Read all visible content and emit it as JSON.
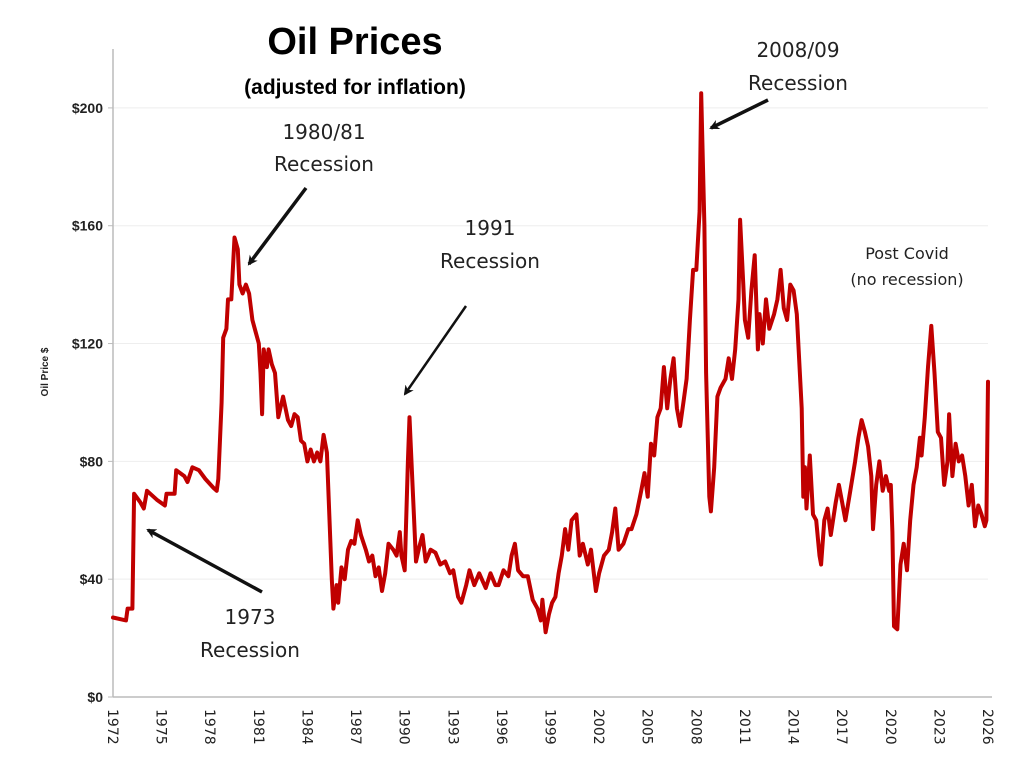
{
  "chart_data": {
    "type": "line",
    "title": "Oil Prices",
    "subtitle": "(adjusted for inflation)",
    "xlabel": "",
    "ylabel": "Oil Price $",
    "xlim": [
      1972,
      2026
    ],
    "ylim": [
      0,
      220
    ],
    "grid": true,
    "line_color": "#c00000",
    "x_ticks": [
      "1972",
      "1975",
      "1978",
      "1981",
      "1984",
      "1987",
      "1990",
      "1993",
      "1996",
      "1999",
      "2002",
      "2005",
      "2008",
      "2011",
      "2014",
      "2017",
      "2020",
      "2023",
      "2026"
    ],
    "y_ticks": [
      {
        "value": 0,
        "label": "$0"
      },
      {
        "value": 40,
        "label": "$40"
      },
      {
        "value": 80,
        "label": "$80"
      },
      {
        "value": 120,
        "label": "$120"
      },
      {
        "value": 160,
        "label": "$160"
      },
      {
        "value": 200,
        "label": "$200"
      }
    ],
    "annotations": [
      {
        "line1": "1973",
        "line2": "Recession",
        "x": 1973.4,
        "y": 56
      },
      {
        "line1": "1980/81",
        "line2": "Recession",
        "x": 1979.9,
        "y": 146
      },
      {
        "line1": "1991",
        "line2": "Recession",
        "x": 1990.0,
        "y": 102
      },
      {
        "line1": "2008/09",
        "line2": "Recession",
        "x": 2008.5,
        "y": 192
      },
      {
        "line1": "Post Covid",
        "line2": "(no recession)",
        "x": null,
        "y": null
      }
    ],
    "series": [
      {
        "x": [
          1972.0,
          1972.8,
          1972.9,
          1973.2,
          1973.3,
          1973.7,
          1973.9,
          1974.1,
          1974.7,
          1975.2,
          1975.3,
          1975.8,
          1975.9,
          1976.4,
          1976.6,
          1976.9,
          1977.3,
          1977.7,
          1978.2,
          1978.4,
          1978.5,
          1978.7,
          1978.8,
          1979.0,
          1979.1,
          1979.3,
          1979.5,
          1979.7,
          1979.8,
          1980.0,
          1980.2,
          1980.4,
          1980.6,
          1980.8,
          1981.0,
          1981.1,
          1981.2,
          1981.3,
          1981.5,
          1981.6,
          1981.8,
          1982.0,
          1982.2,
          1982.5,
          1982.8,
          1983.0,
          1983.2,
          1983.4,
          1983.6,
          1983.8,
          1984.0,
          1984.2,
          1984.4,
          1984.6,
          1984.8,
          1985.0,
          1985.2,
          1985.5,
          1985.6,
          1985.8,
          1985.9,
          1986.1,
          1986.3,
          1986.5,
          1986.7,
          1986.9,
          1987.1,
          1987.3,
          1987.6,
          1987.8,
          1988.0,
          1988.2,
          1988.4,
          1988.6,
          1988.8,
          1989.0,
          1989.3,
          1989.5,
          1989.7,
          1989.8,
          1990.0,
          1990.2,
          1990.3,
          1990.5,
          1990.7,
          1990.9,
          1991.1,
          1991.3,
          1991.6,
          1991.9,
          1992.2,
          1992.5,
          1992.8,
          1993.0,
          1993.3,
          1993.5,
          1993.8,
          1994.0,
          1994.3,
          1994.6,
          1995.0,
          1995.3,
          1995.6,
          1995.8,
          1996.1,
          1996.4,
          1996.6,
          1996.8,
          1997.0,
          1997.3,
          1997.6,
          1997.9,
          1998.2,
          1998.4,
          1998.5,
          1998.7,
          1998.9,
          1999.1,
          1999.3,
          1999.5,
          1999.7,
          1999.9,
          2000.1,
          2000.3,
          2000.6,
          2000.8,
          2001.0,
          2001.3,
          2001.5,
          2001.8,
          2002.0,
          2002.3,
          2002.6,
          2002.8,
          2003.0,
          2003.2,
          2003.5,
          2003.8,
          2004.0,
          2004.3,
          2004.6,
          2004.8,
          2005.0,
          2005.2,
          2005.4,
          2005.6,
          2005.8,
          2006.0,
          2006.2,
          2006.4,
          2006.6,
          2006.8,
          2007.0,
          2007.2,
          2007.4,
          2007.6,
          2007.8,
          2008.0,
          2008.2,
          2008.3,
          2008.5,
          2008.6,
          2008.8,
          2008.9,
          2009.1,
          2009.3,
          2009.5,
          2009.8,
          2010.0,
          2010.2,
          2010.4,
          2010.6,
          2010.7,
          2010.9,
          2011.0,
          2011.2,
          2011.4,
          2011.6,
          2011.8,
          2011.9,
          2012.1,
          2012.3,
          2012.5,
          2012.8,
          2013.0,
          2013.2,
          2013.4,
          2013.6,
          2013.8,
          2014.0,
          2014.2,
          2014.5,
          2014.6,
          2014.7,
          2014.8,
          2015.0,
          2015.2,
          2015.4,
          2015.6,
          2015.7,
          2015.9,
          2016.1,
          2016.3,
          2016.6,
          2016.8,
          2017.0,
          2017.2,
          2017.5,
          2017.8,
          2018.0,
          2018.2,
          2018.4,
          2018.6,
          2018.8,
          2018.9,
          2019.1,
          2019.3,
          2019.5,
          2019.7,
          2019.9,
          2020.0,
          2020.1,
          2020.2,
          2020.4,
          2020.6,
          2020.8,
          2021.0,
          2021.2,
          2021.4,
          2021.6,
          2021.8,
          2021.9,
          2022.1,
          2022.3,
          2022.5,
          2022.7,
          2022.9,
          2023.1,
          2023.3,
          2023.5,
          2023.6,
          2023.8,
          2024.0,
          2024.2,
          2024.4,
          2024.6,
          2024.8,
          2025.0,
          2025.2,
          2025.4,
          2025.6,
          2025.8,
          2025.9,
          2026.0
        ],
        "y": [
          27,
          26,
          30,
          30,
          69,
          66,
          64,
          70,
          67,
          65,
          69,
          69,
          77,
          75,
          73,
          78,
          77,
          74,
          71,
          70,
          74,
          100,
          122,
          125,
          135,
          135,
          156,
          152,
          140,
          137,
          140,
          137,
          128,
          124,
          120,
          110,
          96,
          118,
          112,
          118,
          113,
          110,
          95,
          102,
          94,
          92,
          96,
          95,
          87,
          86,
          80,
          84,
          80,
          83,
          80,
          89,
          83,
          40,
          30,
          38,
          32,
          44,
          40,
          50,
          53,
          52,
          60,
          55,
          50,
          46,
          48,
          41,
          44,
          36,
          42,
          52,
          50,
          48,
          56,
          48,
          43,
          80,
          95,
          70,
          46,
          51,
          55,
          46,
          50,
          49,
          45,
          46,
          42,
          43,
          34,
          32,
          38,
          43,
          38,
          42,
          37,
          42,
          38,
          38,
          43,
          41,
          48,
          52,
          43,
          41,
          41,
          33,
          30,
          26,
          33,
          22,
          28,
          32,
          34,
          42,
          48,
          57,
          50,
          60,
          62,
          48,
          52,
          45,
          50,
          36,
          42,
          48,
          50,
          56,
          64,
          50,
          52,
          57,
          57,
          62,
          70,
          76,
          68,
          86,
          82,
          95,
          98,
          112,
          98,
          108,
          115,
          98,
          92,
          100,
          108,
          128,
          145,
          145,
          165,
          205,
          160,
          110,
          68,
          63,
          78,
          102,
          105,
          108,
          115,
          108,
          118,
          135,
          162,
          140,
          128,
          122,
          138,
          150,
          118,
          130,
          120,
          135,
          125,
          130,
          135,
          145,
          132,
          128,
          140,
          138,
          130,
          98,
          68,
          78,
          64,
          82,
          62,
          60,
          48,
          45,
          60,
          64,
          55,
          66,
          72,
          66,
          60,
          70,
          80,
          88,
          94,
          90,
          85,
          75,
          57,
          72,
          80,
          70,
          75,
          70,
          72,
          56,
          24,
          23,
          45,
          52,
          43,
          60,
          72,
          78,
          88,
          82,
          95,
          112,
          126,
          110,
          90,
          88,
          72,
          80,
          96,
          75,
          86,
          80,
          82,
          75,
          65,
          72,
          58,
          65,
          62,
          58,
          60,
          107
        ]
      }
    ]
  }
}
